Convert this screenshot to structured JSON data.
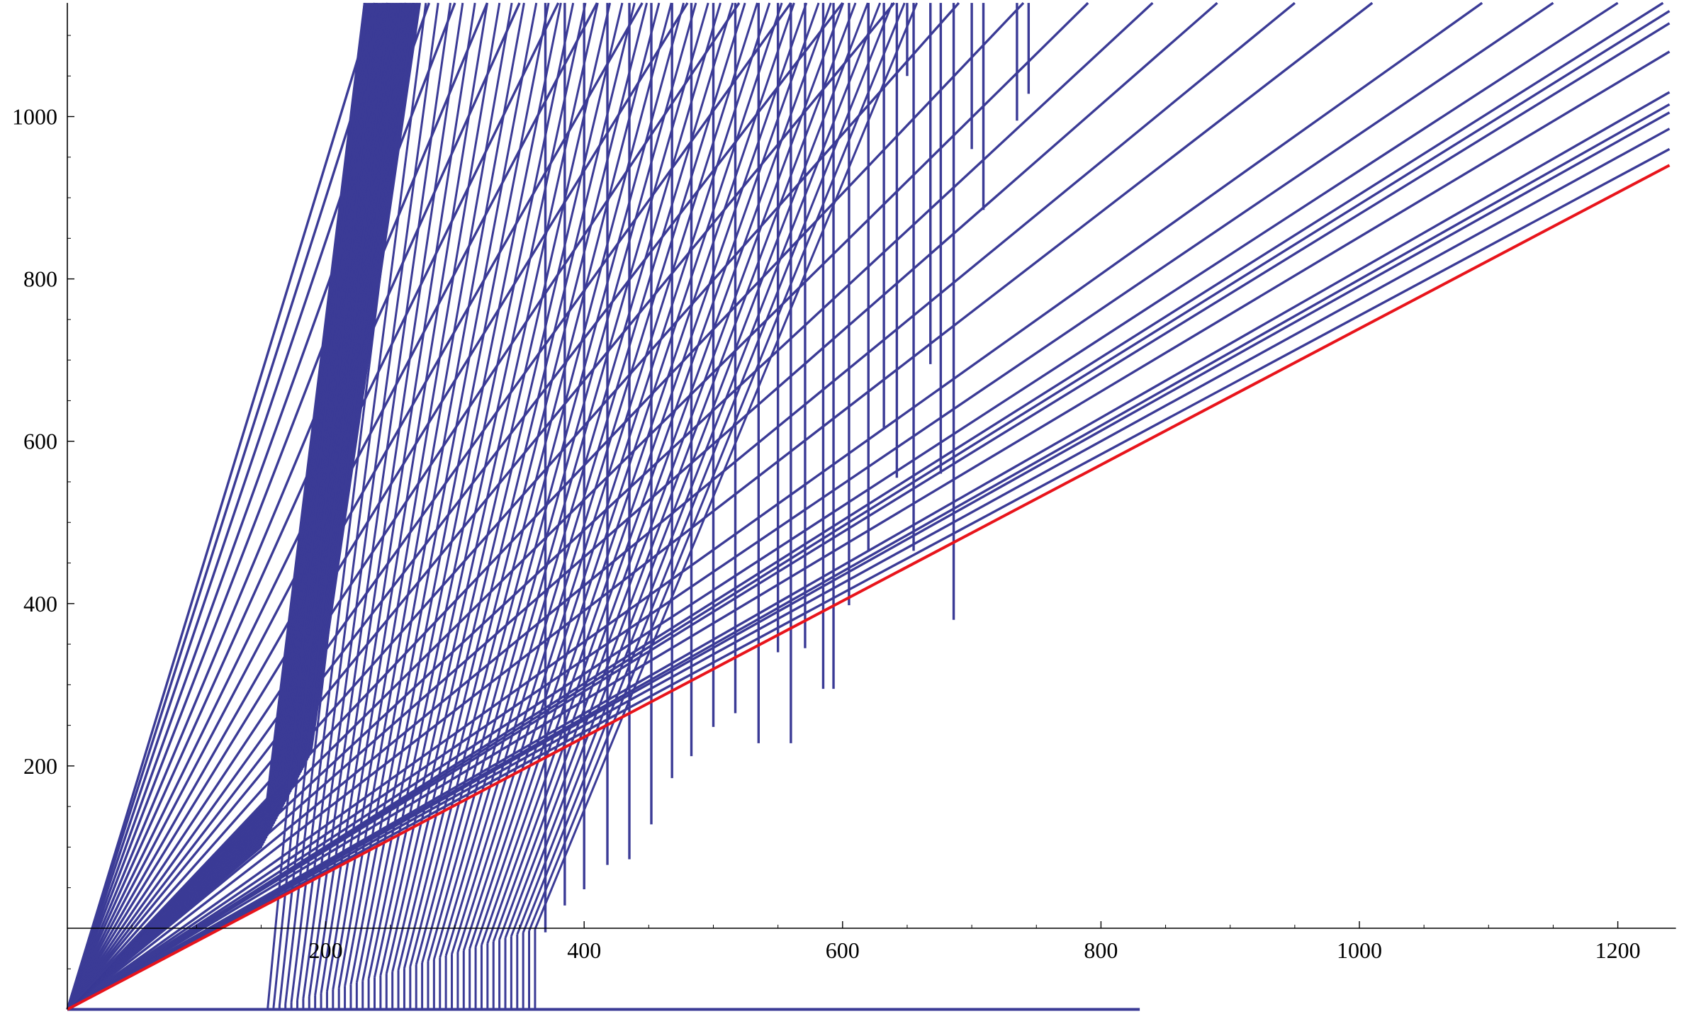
{
  "chart_data": {
    "type": "line",
    "title": "",
    "xlabel": "",
    "ylabel": "",
    "xlim": [
      0,
      1245
    ],
    "ylim": [
      -100,
      1140
    ],
    "x_ticks": [
      200,
      400,
      600,
      800,
      1000,
      1200
    ],
    "y_ticks": [
      200,
      400,
      600,
      800,
      1000
    ],
    "x_tick_labels": [
      "200",
      "400",
      "600",
      "800",
      "1000",
      "1200"
    ],
    "y_tick_labels": [
      "200",
      "400",
      "600",
      "800",
      "1000"
    ],
    "grid": false,
    "legend": "none",
    "colors": {
      "family": "#3b3b96",
      "reference": "#e8141b",
      "axes": "#000000"
    },
    "series": [
      {
        "role": "reference-line",
        "color": "#e8141b",
        "x": [
          0,
          1240
        ],
        "y": [
          -100,
          940
        ]
      },
      {
        "role": "baseline",
        "color": "#3b3b96",
        "x": [
          0,
          830
        ],
        "y": [
          -100,
          -100
        ]
      },
      {
        "role": "family-lines",
        "color": "#3b3b96",
        "description_free_rays": true,
        "rays": [
          {
            "x0": 0,
            "y_end": 960,
            "x_end": 1240
          },
          {
            "x0": 0,
            "y_end": 985,
            "x_end": 1240
          },
          {
            "x0": 0,
            "y_end": 1005,
            "x_end": 1240
          },
          {
            "x0": 0,
            "y_end": 1015,
            "x_end": 1240
          },
          {
            "x0": 0,
            "y_end": 1030,
            "x_end": 1240
          },
          {
            "x0": 0,
            "y_end": 1080,
            "x_end": 1240
          },
          {
            "x0": 0,
            "y_end": 1115,
            "x_end": 1240
          },
          {
            "x0": 0,
            "y_end": 1130,
            "x_end": 1240
          },
          {
            "x0": 0,
            "y_end": 1140,
            "x_end": 1235
          },
          {
            "x0": 0,
            "y_end": 1140,
            "x_end": 1200
          },
          {
            "x0": 0,
            "y_end": 1140,
            "x_end": 1150
          },
          {
            "x0": 0,
            "y_end": 1140,
            "x_end": 1095
          },
          {
            "x0": 0,
            "y_end": 1140,
            "x_end": 1010
          },
          {
            "x0": 0,
            "y_end": 1140,
            "x_end": 950
          },
          {
            "x0": 0,
            "y_end": 1140,
            "x_end": 890
          },
          {
            "x0": 0,
            "y_end": 1140,
            "x_end": 840
          },
          {
            "x0": 0,
            "y_end": 1140,
            "x_end": 790
          },
          {
            "x0": 0,
            "y_end": 1140,
            "x_end": 740
          },
          {
            "x0": 0,
            "y_end": 1140,
            "x_end": 690
          },
          {
            "x0": 0,
            "y_end": 1140,
            "x_end": 640
          },
          {
            "x0": 0,
            "y_end": 1140,
            "x_end": 600
          },
          {
            "x0": 0,
            "y_end": 1140,
            "x_end": 560
          },
          {
            "x0": 0,
            "y_end": 1140,
            "x_end": 520
          },
          {
            "x0": 0,
            "y_end": 1140,
            "x_end": 480
          },
          {
            "x0": 0,
            "y_end": 1140,
            "x_end": 445
          },
          {
            "x0": 0,
            "y_end": 1140,
            "x_end": 410
          },
          {
            "x0": 0,
            "y_end": 1140,
            "x_end": 380
          },
          {
            "x0": 0,
            "y_end": 1140,
            "x_end": 350
          },
          {
            "x0": 0,
            "y_end": 1140,
            "x_end": 325
          },
          {
            "x0": 0,
            "y_end": 1140,
            "x_end": 300
          },
          {
            "x0": 0,
            "y_end": 1140,
            "x_end": 280
          },
          {
            "x0": 0,
            "y_end": 1140,
            "x_end": 262
          },
          {
            "x0": 0,
            "y_end": 1140,
            "x_end": 248
          },
          {
            "x0": 0,
            "y_end": 1140,
            "x_end": 238
          }
        ],
        "vertical_drops": [
          {
            "x": 370,
            "y_bottom": -5
          },
          {
            "x": 385,
            "y_bottom": 28
          },
          {
            "x": 400,
            "y_bottom": 48
          },
          {
            "x": 418,
            "y_bottom": 78
          },
          {
            "x": 435,
            "y_bottom": 85
          },
          {
            "x": 452,
            "y_bottom": 128
          },
          {
            "x": 468,
            "y_bottom": 185
          },
          {
            "x": 483,
            "y_bottom": 212
          },
          {
            "x": 500,
            "y_bottom": 248
          },
          {
            "x": 517,
            "y_bottom": 265
          },
          {
            "x": 535,
            "y_bottom": 228
          },
          {
            "x": 560,
            "y_bottom": 228
          },
          {
            "x": 550,
            "y_bottom": 340
          },
          {
            "x": 571,
            "y_bottom": 345
          },
          {
            "x": 585,
            "y_bottom": 295
          },
          {
            "x": 593,
            "y_bottom": 295
          },
          {
            "x": 605,
            "y_bottom": 398
          },
          {
            "x": 620,
            "y_bottom": 465
          },
          {
            "x": 632,
            "y_bottom": 615
          },
          {
            "x": 642,
            "y_bottom": 555
          },
          {
            "x": 655,
            "y_bottom": 465
          },
          {
            "x": 668,
            "y_bottom": 695
          },
          {
            "x": 676,
            "y_bottom": 560
          },
          {
            "x": 686,
            "y_bottom": 380
          },
          {
            "x": 709,
            "y_bottom": 885
          },
          {
            "x": 735,
            "y_bottom": 995
          },
          {
            "x": 744,
            "y_bottom": 1028
          },
          {
            "x": 620,
            "y_bottom": 1090
          },
          {
            "x": 650,
            "y_bottom": 1050
          },
          {
            "x": 700,
            "y_bottom": 960
          }
        ]
      }
    ]
  }
}
